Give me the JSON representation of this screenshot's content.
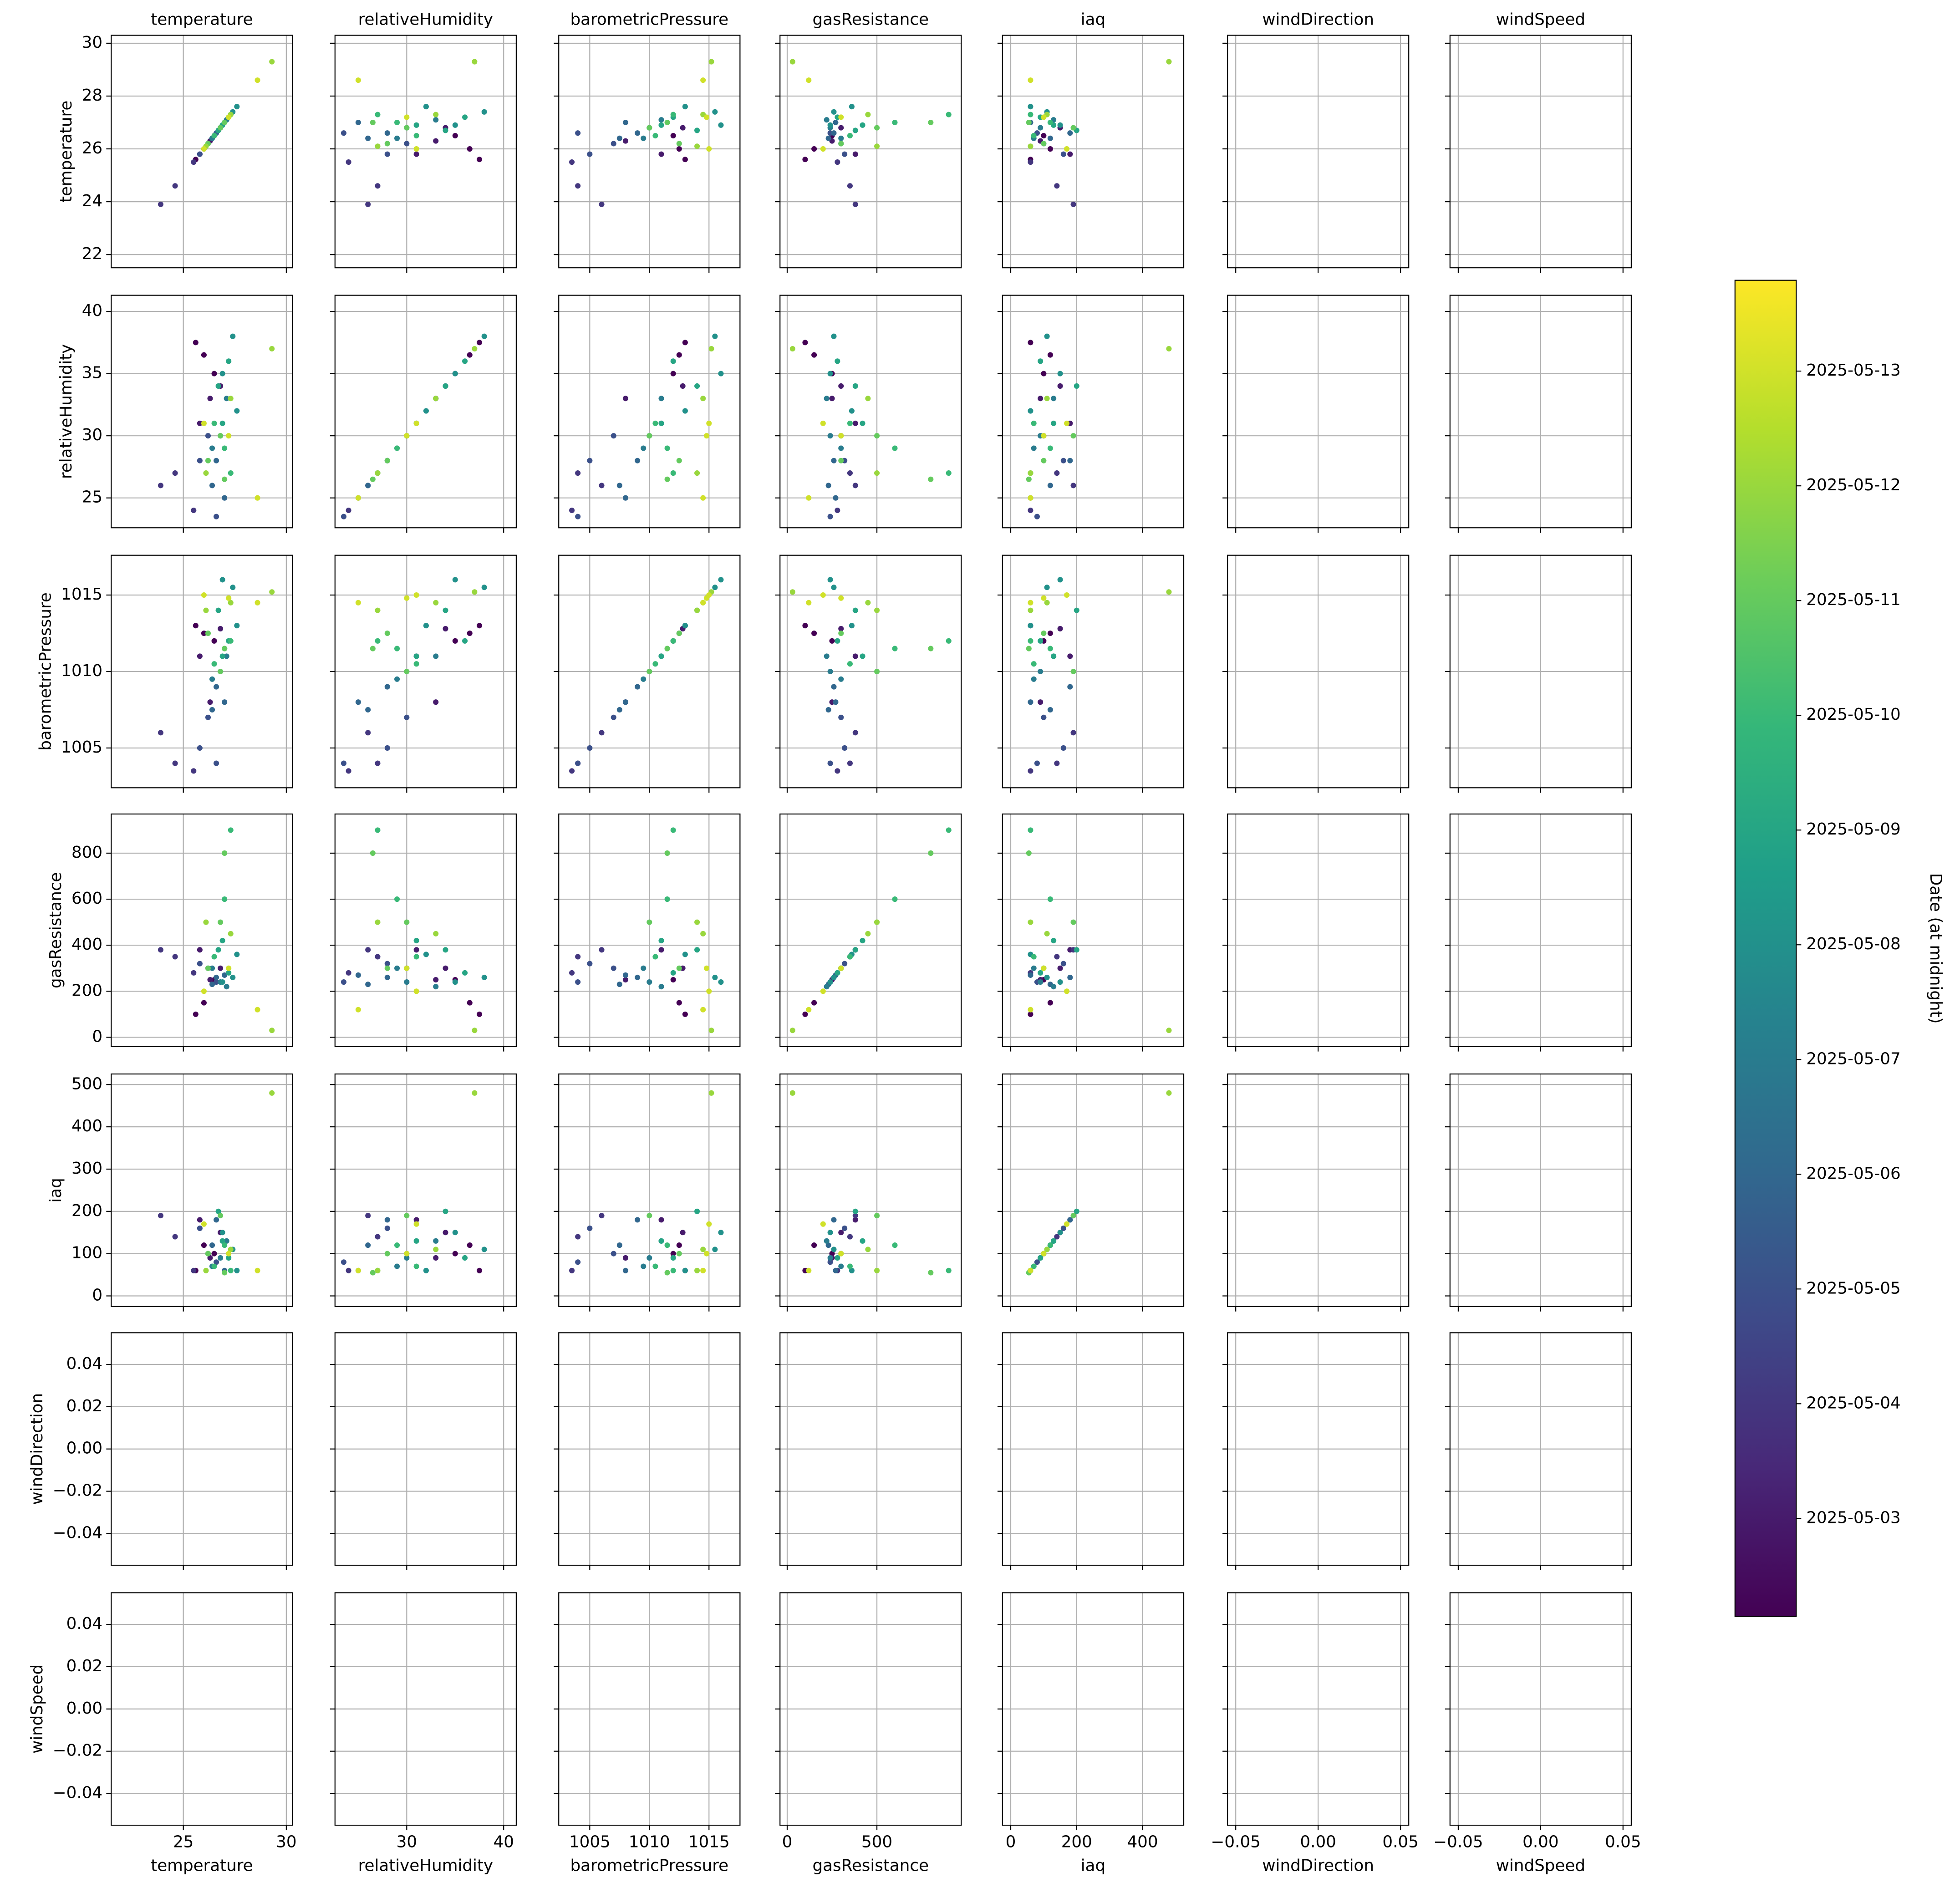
{
  "chart_data": {
    "type": "pairplot",
    "grid": true,
    "colormap": "viridis",
    "dates": [
      "2025-05-02",
      "2025-05-02",
      "2025-05-02",
      "2025-05-03",
      "2025-05-03",
      "2025-05-03",
      "2025-05-04",
      "2025-05-04",
      "2025-05-04",
      "2025-05-05",
      "2025-05-05",
      "2025-05-05",
      "2025-05-06",
      "2025-05-06",
      "2025-05-06",
      "2025-05-07",
      "2025-05-07",
      "2025-05-07",
      "2025-05-08",
      "2025-05-08",
      "2025-05-08",
      "2025-05-09",
      "2025-05-09",
      "2025-05-09",
      "2025-05-10",
      "2025-05-10",
      "2025-05-10",
      "2025-05-11",
      "2025-05-11",
      "2025-05-11",
      "2025-05-12",
      "2025-05-12",
      "2025-05-12",
      "2025-05-13",
      "2025-05-13",
      "2025-05-13"
    ],
    "variables": [
      {
        "name": "temperature",
        "lim": [
          21.5,
          30.3
        ],
        "xticks": [
          25,
          30
        ],
        "yticks": [
          22,
          24,
          26,
          28,
          30
        ],
        "values": [
          26.0,
          25.6,
          26.5,
          26.8,
          25.8,
          26.3,
          24.6,
          25.5,
          23.9,
          26.2,
          26.6,
          25.8,
          26.4,
          27.0,
          26.6,
          26.8,
          27.1,
          26.4,
          27.4,
          26.9,
          27.6,
          26.7,
          27.2,
          26.9,
          27.0,
          26.5,
          27.3,
          26.8,
          27.0,
          26.2,
          27.3,
          29.3,
          26.1,
          26.0,
          27.2,
          28.6
        ]
      },
      {
        "name": "relativeHumidity",
        "lim": [
          22.6,
          41.3
        ],
        "xticks": [
          30,
          40
        ],
        "yticks": [
          25,
          30,
          35,
          40
        ],
        "values": [
          36.5,
          37.5,
          35,
          34,
          31,
          33,
          27,
          24,
          26,
          30,
          23.5,
          28,
          26,
          25,
          28,
          30,
          33,
          29,
          38,
          35,
          32,
          34,
          36,
          31,
          29,
          31,
          27,
          30,
          26.5,
          28,
          33,
          37,
          27,
          31,
          30,
          25
        ]
      },
      {
        "name": "barometricPressure",
        "lim": [
          1002.4,
          1017.6
        ],
        "xticks": [
          1005,
          1010,
          1015
        ],
        "yticks": [
          1005,
          1010,
          1015
        ],
        "values": [
          1012.5,
          1013,
          1012,
          1012.8,
          1011,
          1008,
          1004,
          1003.5,
          1006,
          1007,
          1004,
          1005,
          1007.5,
          1008,
          1009,
          1010,
          1011,
          1009.5,
          1015.5,
          1016,
          1013,
          1014,
          1012,
          1011,
          1011.5,
          1010.5,
          1012,
          1010,
          1011.5,
          1012.5,
          1014.5,
          1015.2,
          1014,
          1015,
          1014.8,
          1014.5
        ]
      },
      {
        "name": "gasResistance",
        "lim": [
          -40,
          970
        ],
        "xticks": [
          0,
          500
        ],
        "yticks": [
          0,
          200,
          400,
          600,
          800
        ],
        "values": [
          150,
          100,
          250,
          300,
          380,
          250,
          350,
          280,
          380,
          300,
          240,
          320,
          230,
          270,
          260,
          240,
          220,
          300,
          260,
          240,
          360,
          380,
          280,
          420,
          600,
          350,
          900,
          500,
          800,
          300,
          450,
          30,
          500,
          200,
          300,
          120
        ]
      },
      {
        "name": "iaq",
        "lim": [
          -25,
          525
        ],
        "xticks": [
          0,
          200,
          400
        ],
        "yticks": [
          0,
          100,
          200,
          300,
          400,
          500
        ],
        "values": [
          120,
          60,
          100,
          150,
          180,
          90,
          140,
          60,
          190,
          100,
          80,
          160,
          120,
          60,
          180,
          90,
          130,
          70,
          110,
          150,
          60,
          200,
          90,
          130,
          120,
          70,
          60,
          190,
          55,
          100,
          110,
          480,
          60,
          170,
          100,
          60
        ]
      },
      {
        "name": "windDirection",
        "lim": [
          -0.055,
          0.055
        ],
        "xticks": [
          {
            "value": -0.05,
            "label": "−0.05"
          },
          {
            "value": 0,
            "label": "0.00"
          },
          {
            "value": 0.05,
            "label": "0.05"
          }
        ],
        "yticks": [
          {
            "value": -0.04,
            "label": "−0.04"
          },
          {
            "value": -0.02,
            "label": "−0.02"
          },
          {
            "value": 0,
            "label": "0.00"
          },
          {
            "value": 0.02,
            "label": "0.02"
          },
          {
            "value": 0.04,
            "label": "0.04"
          }
        ],
        "values": [
          null,
          null,
          null,
          null,
          null,
          null,
          null,
          null,
          null,
          null,
          null,
          null,
          null,
          null,
          null,
          null,
          null,
          null,
          null,
          null,
          null,
          null,
          null,
          null,
          null,
          null,
          null,
          null,
          null,
          null,
          null,
          null,
          null,
          null,
          null,
          null
        ]
      },
      {
        "name": "windSpeed",
        "lim": [
          -0.055,
          0.055
        ],
        "xticks": [
          {
            "value": -0.05,
            "label": "−0.05"
          },
          {
            "value": 0,
            "label": "0.00"
          },
          {
            "value": 0.05,
            "label": "0.05"
          }
        ],
        "yticks": [
          {
            "value": -0.04,
            "label": "−0.04"
          },
          {
            "value": -0.02,
            "label": "−0.02"
          },
          {
            "value": 0,
            "label": "0.00"
          },
          {
            "value": 0.02,
            "label": "0.02"
          },
          {
            "value": 0.04,
            "label": "0.04"
          }
        ],
        "values": [
          null,
          null,
          null,
          null,
          null,
          null,
          null,
          null,
          null,
          null,
          null,
          null,
          null,
          null,
          null,
          null,
          null,
          null,
          null,
          null,
          null,
          null,
          null,
          null,
          null,
          null,
          null,
          null,
          null,
          null,
          null,
          null,
          null,
          null,
          null,
          null
        ]
      }
    ],
    "colorbar": {
      "label": "Date (at midnight)",
      "lim": [
        "2025-05-02T03:30",
        "2025-05-13T19:00"
      ],
      "ticks": [
        "2025-05-03",
        "2025-05-04",
        "2025-05-05",
        "2025-05-06",
        "2025-05-07",
        "2025-05-08",
        "2025-05-09",
        "2025-05-10",
        "2025-05-11",
        "2025-05-12",
        "2025-05-13"
      ]
    }
  }
}
